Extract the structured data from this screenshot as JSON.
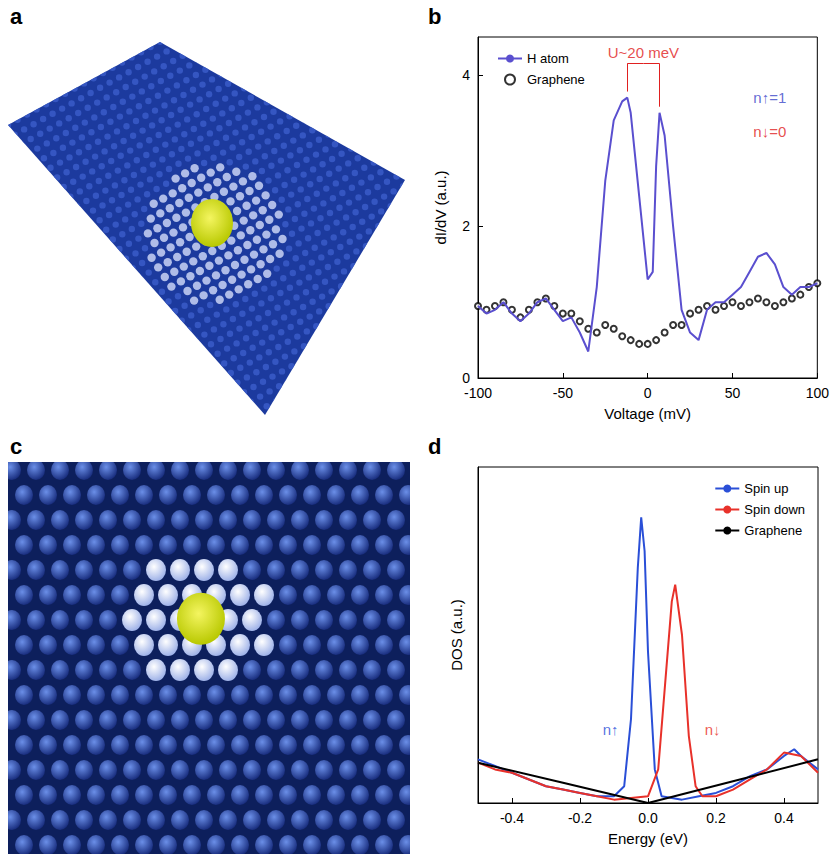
{
  "chart_data": [
    {
      "type": "image",
      "panel": "a"
    },
    {
      "type": "line",
      "panel": "b",
      "x_label": "Voltage (mV)",
      "y_label": "dI/dV (a.u.)",
      "xlim": [
        -100,
        100
      ],
      "xticks": [
        -100,
        -50,
        0,
        50,
        100
      ],
      "ylim": [
        0,
        4.5
      ],
      "yticks": [
        0,
        2,
        4
      ],
      "grid": false,
      "legend": "upper left",
      "series": [
        {
          "name": "H atom",
          "color": "#5a4fcf",
          "type": "line",
          "line_style": "solid",
          "x": [
            -100,
            -95,
            -90,
            -85,
            -80,
            -75,
            -70,
            -65,
            -60,
            -55,
            -50,
            -45,
            -40,
            -35,
            -30,
            -25,
            -20,
            -15,
            -12,
            -10,
            -5,
            0,
            3,
            5,
            7,
            10,
            15,
            20,
            25,
            30,
            35,
            40,
            45,
            50,
            55,
            60,
            65,
            70,
            75,
            80,
            85,
            90,
            95,
            100
          ],
          "values": [
            0.95,
            0.85,
            0.9,
            1.0,
            0.85,
            0.75,
            0.85,
            1.0,
            1.05,
            0.9,
            0.75,
            0.8,
            0.6,
            0.35,
            1.2,
            2.6,
            3.4,
            3.65,
            3.7,
            3.5,
            2.4,
            1.3,
            1.4,
            2.8,
            3.5,
            3.2,
            2.0,
            0.9,
            0.6,
            0.5,
            0.9,
            1.0,
            1.0,
            1.1,
            1.2,
            1.4,
            1.6,
            1.65,
            1.5,
            1.2,
            1.1,
            1.2,
            1.2,
            1.25
          ]
        },
        {
          "name": "Graphene",
          "color": "#000000",
          "type": "scatter",
          "marker": "circle_open",
          "x": [
            -100,
            -95,
            -90,
            -85,
            -80,
            -75,
            -70,
            -65,
            -60,
            -55,
            -50,
            -45,
            -40,
            -35,
            -30,
            -25,
            -20,
            -15,
            -10,
            -5,
            0,
            5,
            10,
            15,
            20,
            25,
            30,
            35,
            40,
            45,
            50,
            55,
            60,
            65,
            70,
            75,
            80,
            85,
            90,
            95,
            100
          ],
          "values": [
            0.95,
            0.9,
            0.95,
            1.0,
            0.9,
            0.8,
            0.9,
            1.0,
            1.05,
            0.95,
            0.85,
            0.85,
            0.75,
            0.65,
            0.6,
            0.7,
            0.65,
            0.55,
            0.5,
            0.45,
            0.45,
            0.5,
            0.6,
            0.7,
            0.7,
            0.85,
            0.9,
            0.95,
            0.9,
            0.95,
            1.0,
            0.95,
            1.0,
            1.05,
            1.0,
            0.95,
            1.0,
            1.05,
            1.1,
            1.2,
            1.25
          ]
        }
      ],
      "annotations": [
        {
          "text": "U~20 meV",
          "x": -2.5,
          "y": 4.3,
          "color": "#e02020",
          "points_to": [
            -12,
            7
          ]
        },
        {
          "text": "n↑=1",
          "x": 72,
          "y": 3.7,
          "color": "#3a46c8"
        },
        {
          "text": "n↓=0",
          "x": 72,
          "y": 3.25,
          "color": "#e02020"
        }
      ]
    },
    {
      "type": "image",
      "panel": "c"
    },
    {
      "type": "line",
      "panel": "d",
      "x_label": "Energy (eV)",
      "y_label": "DOS (a.u.)",
      "xlim": [
        -0.5,
        0.5
      ],
      "xticks": [
        -0.4,
        -0.2,
        {
          "value": 0,
          "label": "0.0"
        },
        0.2,
        0.4
      ],
      "ylim": [
        0,
        1
      ],
      "tick_labels": "x",
      "grid": false,
      "legend": "upper right",
      "series": [
        {
          "name": "Spin up",
          "color": "#2a4fd7",
          "line_style": "solid",
          "x": [
            -0.5,
            -0.45,
            -0.4,
            -0.35,
            -0.3,
            -0.25,
            -0.2,
            -0.15,
            -0.1,
            -0.07,
            -0.05,
            -0.03,
            -0.02,
            -0.01,
            0.0,
            0.02,
            0.04,
            0.1,
            0.15,
            0.2,
            0.25,
            0.3,
            0.35,
            0.4,
            0.43,
            0.45,
            0.5
          ],
          "values": [
            0.13,
            0.11,
            0.09,
            0.07,
            0.05,
            0.04,
            0.03,
            0.02,
            0.02,
            0.05,
            0.25,
            0.7,
            0.85,
            0.75,
            0.45,
            0.1,
            0.02,
            0.01,
            0.02,
            0.03,
            0.05,
            0.08,
            0.1,
            0.14,
            0.16,
            0.14,
            0.1
          ]
        },
        {
          "name": "Spin down",
          "color": "#e8312a",
          "line_style": "solid",
          "x": [
            -0.5,
            -0.45,
            -0.4,
            -0.35,
            -0.3,
            -0.25,
            -0.2,
            -0.15,
            -0.1,
            0.0,
            0.03,
            0.05,
            0.07,
            0.08,
            0.1,
            0.12,
            0.14,
            0.16,
            0.2,
            0.25,
            0.3,
            0.35,
            0.4,
            0.45,
            0.5
          ],
          "values": [
            0.12,
            0.1,
            0.09,
            0.07,
            0.05,
            0.04,
            0.03,
            0.02,
            0.01,
            0.02,
            0.1,
            0.35,
            0.6,
            0.65,
            0.5,
            0.2,
            0.05,
            0.02,
            0.02,
            0.04,
            0.07,
            0.1,
            0.15,
            0.14,
            0.09
          ]
        },
        {
          "name": "Graphene",
          "color": "#000000",
          "line_style": "solid",
          "x": [
            -0.5,
            -0.25,
            0.0,
            0.25,
            0.5
          ],
          "values": [
            0.12,
            0.06,
            0.0,
            0.065,
            0.13
          ]
        }
      ],
      "annotations": [
        {
          "text": "n↑",
          "x": -0.11,
          "y": 0.22,
          "color": "#2a4fd7"
        },
        {
          "text": "n↓",
          "x": 0.19,
          "y": 0.22,
          "color": "#e8312a"
        }
      ]
    }
  ]
}
